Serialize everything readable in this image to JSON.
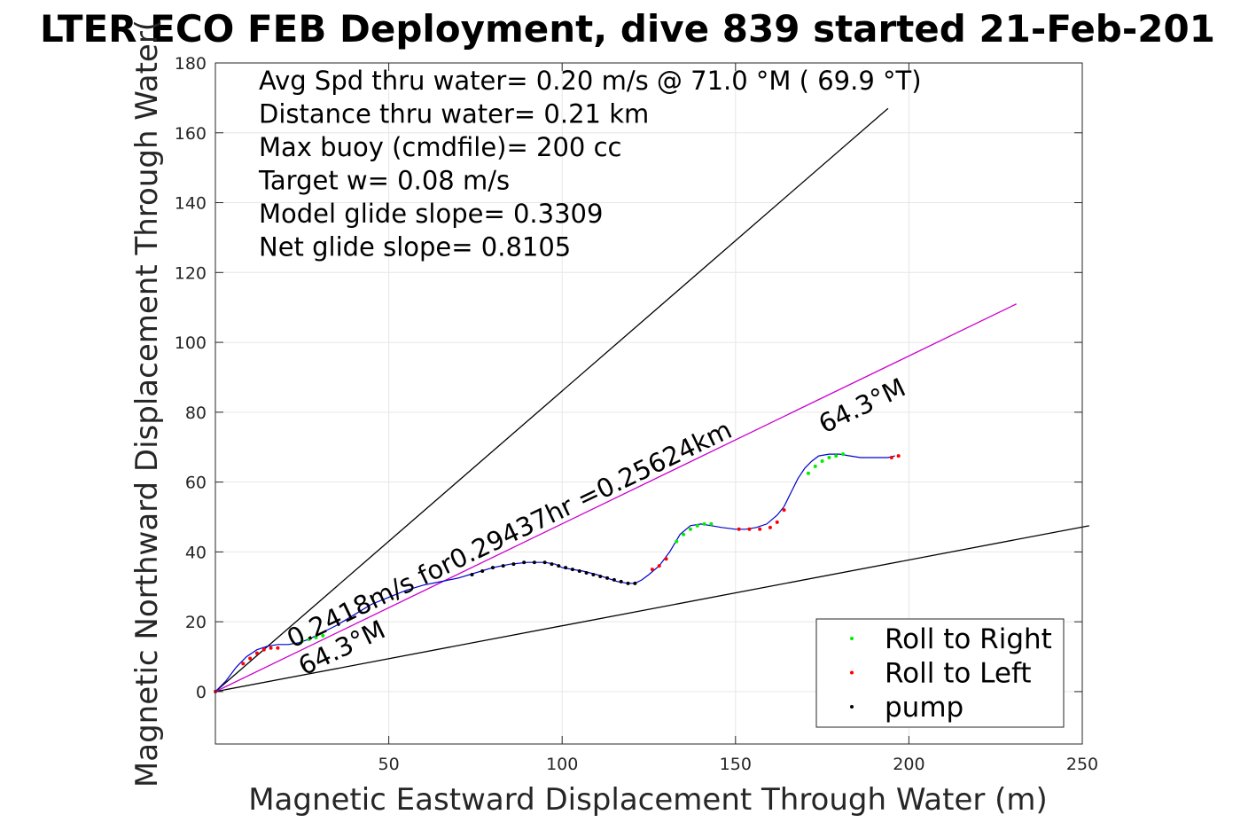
{
  "chart_data": {
    "type": "line",
    "title": "LTER ECO FEB Deployment, dive 839 started 21-Feb-201",
    "xlabel": "Magnetic Eastward Displacement Through Water (m)",
    "ylabel": "Magnetic Northward Displacement Through Water(",
    "xlim": [
      0,
      250
    ],
    "ylim": [
      -15,
      180
    ],
    "xticks": [
      50,
      100,
      150,
      200,
      250
    ],
    "xtick_labels": [
      "50",
      "100",
      "150",
      "200",
      "250"
    ],
    "yticks": [
      0,
      20,
      40,
      60,
      80,
      100,
      120,
      140,
      160,
      180
    ],
    "ytick_labels": [
      "0",
      "20",
      "40",
      "60",
      "80",
      "100",
      "120",
      "140",
      "160",
      "180"
    ],
    "grid": true,
    "annotations": [
      "Avg Spd thru water=  0.20 m/s @  71.0 °M ( 69.9 °T)",
      "Distance thru water=  0.21 km",
      "Max buoy (cmdfile)= 200 cc",
      "Target w= 0.08 m/s",
      "Model glide slope= 0.3309",
      "Net glide slope= 0.8105"
    ],
    "rotated_labels": {
      "speed_line": "0.2418m/s for0.29437hr =0.25624km",
      "heading_upper": "64.3°M",
      "heading_lower": "64.3°M"
    },
    "reference_lines": [
      {
        "x": [
          0,
          194
        ],
        "y": [
          0,
          167
        ],
        "color": "#000000"
      },
      {
        "x": [
          0,
          252
        ],
        "y": [
          0,
          47.5
        ],
        "color": "#000000"
      },
      {
        "x": [
          0,
          231
        ],
        "y": [
          0,
          111
        ],
        "color": "#cc00cc"
      }
    ],
    "track": {
      "color": "#0000cc",
      "x": [
        0,
        3,
        6,
        9,
        12,
        15,
        18,
        21,
        24,
        27,
        30,
        35,
        40,
        45,
        50,
        55,
        60,
        65,
        70,
        75,
        80,
        85,
        90,
        95,
        98,
        100,
        103,
        106,
        110,
        113,
        116,
        119,
        121,
        123,
        125,
        128,
        131,
        134,
        137,
        140,
        143,
        146,
        150,
        153,
        156,
        159,
        162,
        164,
        166,
        168,
        170,
        172,
        174,
        177,
        180,
        183,
        186,
        190,
        194,
        196
      ],
      "y": [
        0,
        3,
        7,
        10,
        12,
        13,
        13.5,
        13.5,
        14,
        15,
        16.5,
        19,
        22,
        25,
        27,
        29,
        30.5,
        31.5,
        32.5,
        34,
        35.5,
        36.5,
        37,
        37,
        36.5,
        35.5,
        35,
        34.5,
        33.5,
        32.5,
        31.5,
        31,
        31,
        32,
        33.5,
        36,
        40,
        45,
        47.5,
        48,
        47.5,
        47,
        46.5,
        46.5,
        47,
        48,
        50.5,
        53,
        57,
        61,
        64,
        66,
        67.5,
        68,
        68,
        67.5,
        67,
        67,
        67,
        67.5
      ]
    },
    "series": [
      {
        "name": "Roll to Right",
        "color": "#00ee00",
        "x": [
          25,
          27,
          29,
          31,
          133,
          135,
          137,
          139,
          141,
          143,
          171,
          173,
          175,
          177,
          179,
          181
        ],
        "y": [
          14.5,
          15,
          15.5,
          16,
          43,
          45,
          46.5,
          47.5,
          48,
          48,
          62.5,
          64.5,
          66,
          67,
          67.5,
          68
        ]
      },
      {
        "name": "Roll to Left",
        "color": "#ff0000",
        "x": [
          0,
          8,
          10,
          12,
          14,
          16,
          18,
          126,
          128,
          130,
          151,
          154,
          157,
          160,
          162,
          164,
          195,
          197
        ],
        "y": [
          0,
          8,
          9.5,
          11,
          12,
          12.5,
          12.5,
          35,
          36,
          38,
          46.5,
          46.5,
          46.5,
          47,
          48.5,
          52,
          67,
          67.5
        ]
      },
      {
        "name": "pump",
        "color": "#000000",
        "x": [
          74,
          77,
          80,
          83,
          86,
          89,
          92,
          95,
          97,
          99,
          101,
          103,
          105,
          107,
          109,
          111,
          113,
          115,
          117,
          119,
          121
        ],
        "y": [
          33.5,
          34.5,
          35.5,
          36,
          36.5,
          37,
          37,
          37,
          36.5,
          36,
          35.5,
          35,
          34.5,
          34,
          33.5,
          33,
          32.5,
          32,
          31.5,
          31,
          31
        ]
      }
    ],
    "legend": {
      "position": "bottom-right",
      "entries": [
        "Roll to Right",
        "Roll to Left",
        "pump"
      ]
    }
  }
}
